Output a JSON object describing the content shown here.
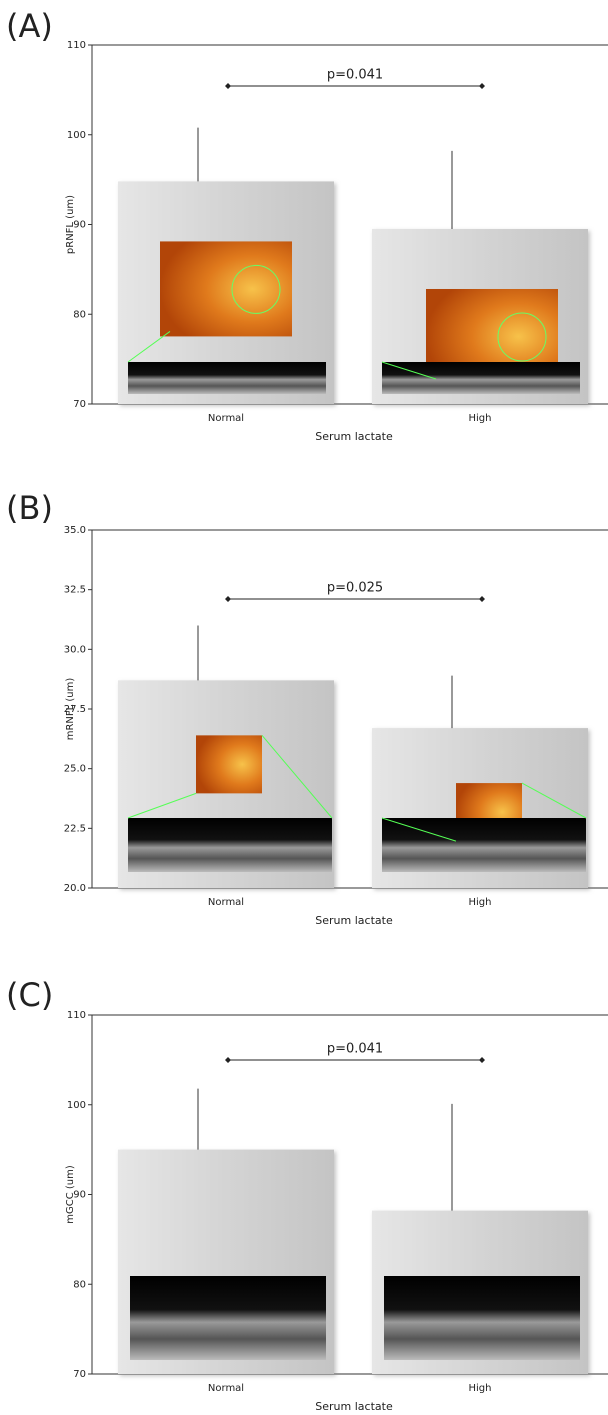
{
  "chart_data": [
    {
      "type": "bar",
      "panel_label": "(A)",
      "ylabel": "pRNFL (um)",
      "xlabel": "Serum lactate",
      "categories": [
        "Normal",
        "High"
      ],
      "values": [
        94.8,
        89.5
      ],
      "errors": [
        6.0,
        8.7
      ],
      "color": "#d4d4d4",
      "ylim": [
        70,
        110
      ],
      "yticks": [
        70,
        80,
        90,
        100,
        110
      ],
      "annotation": "p=0.041"
    },
    {
      "type": "bar",
      "panel_label": "(B)",
      "ylabel": "mRNFL (um)",
      "xlabel": "Serum lactate",
      "categories": [
        "Normal",
        "High"
      ],
      "values": [
        28.7,
        26.7
      ],
      "errors": [
        2.3,
        2.2
      ],
      "color": "#d4d4d4",
      "ylim": [
        20,
        35
      ],
      "yticks": [
        {
          "value": 20,
          "label": "20.0"
        },
        22.5,
        {
          "value": 25,
          "label": "25.0"
        },
        27.5,
        {
          "value": 30,
          "label": "30.0"
        },
        32.5,
        {
          "value": 35,
          "label": "35.0"
        }
      ],
      "annotation": "p=0.025"
    },
    {
      "type": "bar",
      "panel_label": "(C)",
      "ylabel": "mGCC (um)",
      "xlabel": "Serum lactate",
      "categories": [
        "Normal",
        "High"
      ],
      "values": [
        95.0,
        88.2
      ],
      "errors": [
        6.8,
        11.9
      ],
      "color": "#d4d4d4",
      "ylim": [
        70,
        110
      ],
      "yticks": [
        70,
        80,
        90,
        100,
        110
      ],
      "annotation": "p=0.041"
    }
  ]
}
